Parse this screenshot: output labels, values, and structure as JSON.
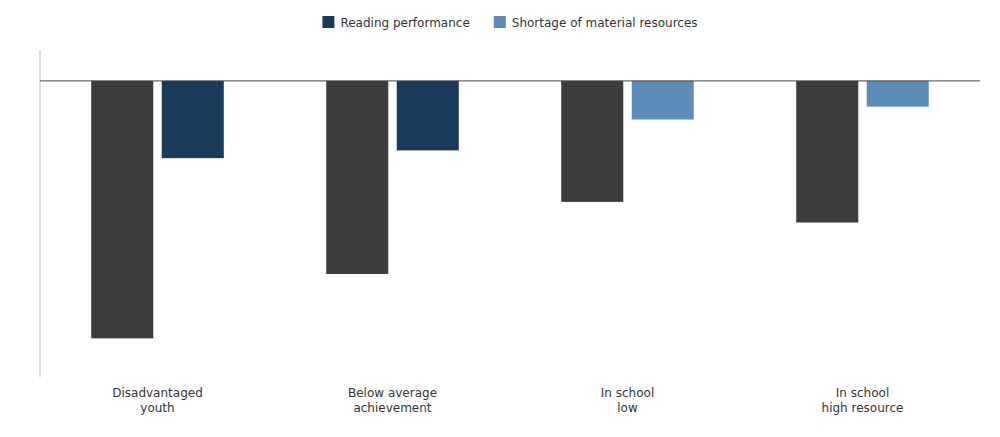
{
  "chart_data": {
    "type": "bar",
    "categories": [
      "Disadvantaged\nyouth",
      "Below average\nachievement",
      "In school\nlow",
      "In school\nhigh resource"
    ],
    "series": [
      {
        "color": "#3d3d3d",
        "values": [
          -100,
          -75,
          -47,
          -55
        ]
      },
      {
        "name": "Reading performance",
        "color": "#1a3a5c",
        "values": [
          -30,
          -27,
          null,
          null
        ]
      },
      {
        "name": "Shortage of material resources",
        "color": "#5b8db8",
        "values": [
          null,
          null,
          -15,
          -10
        ]
      }
    ],
    "ylim": [
      -115,
      12
    ],
    "grid": false,
    "legend": "top",
    "tick_labels": "x"
  }
}
